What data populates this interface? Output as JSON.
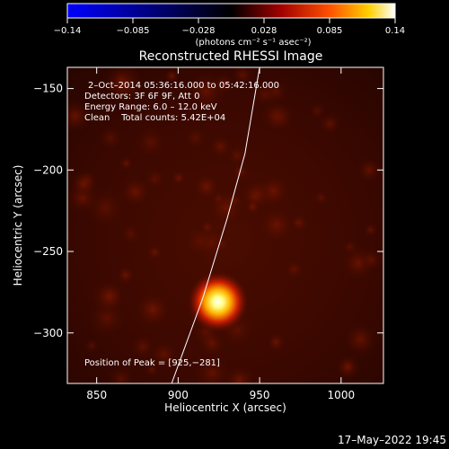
{
  "chart_data": {
    "type": "heatmap",
    "title": "Reconstructed RHESSI Image",
    "xlabel": "Heliocentric X (arcsec)",
    "ylabel": "Heliocentric Y (arcsec)",
    "xlim": [
      832,
      1026
    ],
    "ylim": [
      -331,
      -137
    ],
    "x_ticks": [
      850,
      900,
      950,
      1000
    ],
    "y_ticks": [
      -150,
      -200,
      -250,
      -300
    ],
    "x_tick_labels": [
      "850",
      "900",
      "950",
      "1000"
    ],
    "y_tick_labels": [
      "−150",
      "−200",
      "−250",
      "−300"
    ],
    "colorbar": {
      "range": [
        -0.14,
        0.14
      ],
      "ticks": [
        "−0.14",
        "−0.085",
        "−0.028",
        "0.028",
        "0.085",
        "0.14"
      ],
      "unit": "(photons cm⁻² s⁻¹ asec⁻²)",
      "colormap": [
        "#0000ff",
        "#000000",
        "#ff0000",
        "#ffff00",
        "#ffffff"
      ]
    },
    "annotations": [
      "2–Oct–2014 05:36:16.000 to 05:42:16.000",
      "Detectors: 3F 6F 9F, Att 0",
      "Energy Range: 6.0 – 12.0 keV",
      "Clean    Total counts: 5.42E+04"
    ],
    "peak_label": "Position of Peak = [925,−281]",
    "peak": {
      "x": 925,
      "y": -281
    },
    "limb_curve": [
      [
        896,
        -331
      ],
      [
        915,
        -279
      ],
      [
        930,
        -230
      ],
      [
        941,
        -190
      ],
      [
        950,
        -137
      ]
    ],
    "background_color": "#3a0800",
    "grid": false
  },
  "footer_date": "17–May–2022 19:45"
}
